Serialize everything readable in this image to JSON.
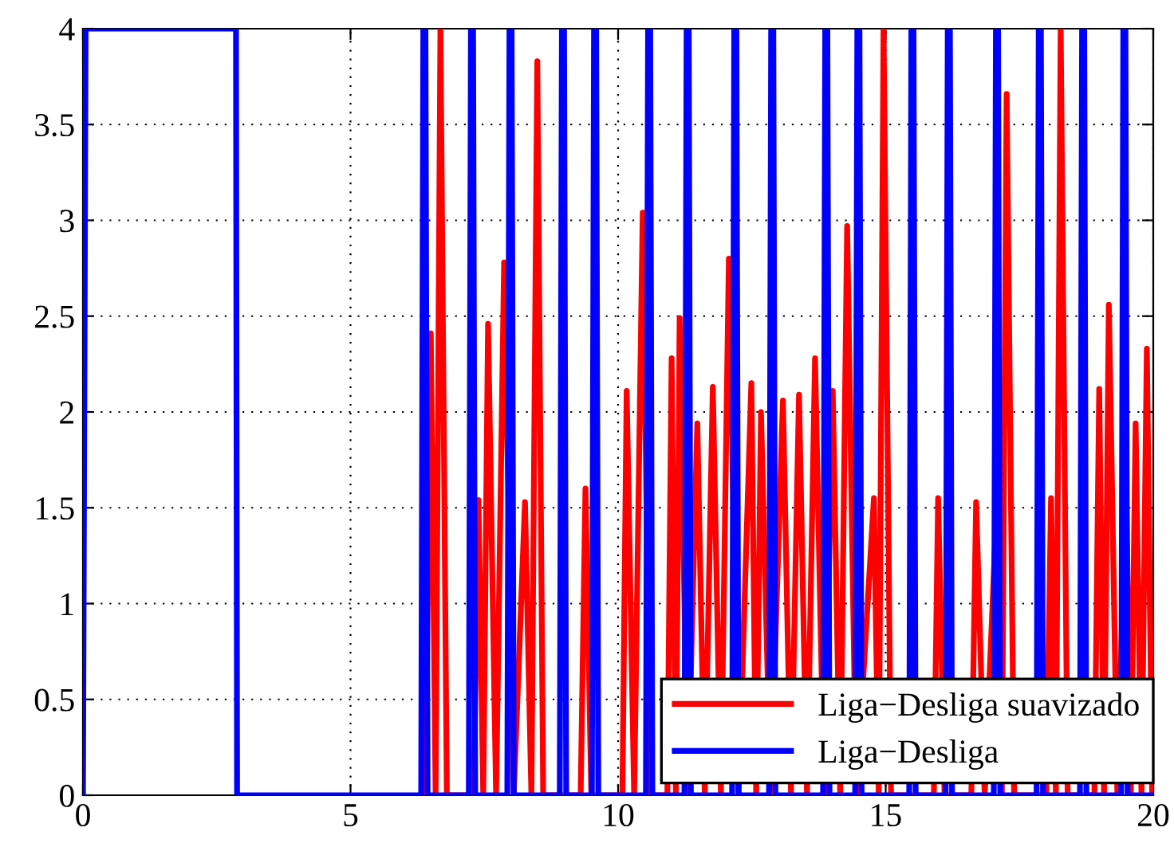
{
  "chart_data": {
    "type": "line",
    "xlim": [
      0,
      20
    ],
    "ylim": [
      0,
      4
    ],
    "xticks": [
      0,
      5,
      10,
      15,
      20
    ],
    "yticks": [
      0,
      0.5,
      1,
      1.5,
      2,
      2.5,
      3,
      3.5,
      4
    ],
    "grid": true,
    "legend": "bottom right",
    "line_style": "solid",
    "marker": "none",
    "series": [
      {
        "name": "Liga−Desliga suavizado",
        "color": "#ff0000",
        "x": [
          6.4,
          6.5,
          6.59,
          6.68,
          6.8,
          7.3,
          7.39,
          7.48,
          7.57,
          7.72,
          7.87,
          8.05,
          8.26,
          8.38,
          8.49,
          8.6,
          9.3,
          9.39,
          9.5,
          10.08,
          10.16,
          10.3,
          10.46,
          10.6,
          10.92,
          11.0,
          11.08,
          11.15,
          11.3,
          11.48,
          11.62,
          11.77,
          11.92,
          12.07,
          12.25,
          12.49,
          12.58,
          12.67,
          12.85,
          13.08,
          13.23,
          13.38,
          13.53,
          13.68,
          13.85,
          14.01,
          14.15,
          14.28,
          14.45,
          14.78,
          14.87,
          14.96,
          15.1,
          15.9,
          15.98,
          16.1,
          16.6,
          16.69,
          16.85,
          17.08,
          17.17,
          17.26,
          17.4,
          18.0,
          18.09,
          18.18,
          18.27,
          18.4,
          18.9,
          18.99,
          19.08,
          19.17,
          19.33,
          19.49,
          19.58,
          19.67,
          19.78,
          19.88,
          19.98
        ],
        "values": [
          0,
          2.41,
          0,
          4,
          0,
          0,
          1.54,
          0,
          2.46,
          0,
          2.78,
          0,
          1.53,
          0,
          3.83,
          0,
          0,
          1.6,
          0,
          0,
          2.11,
          0,
          3.04,
          0,
          0,
          2.28,
          0,
          2.49,
          0,
          1.94,
          0,
          2.13,
          0,
          2.8,
          0,
          2.15,
          0,
          2.0,
          0,
          2.06,
          0,
          2.09,
          0,
          2.28,
          0,
          2.11,
          0,
          2.97,
          0,
          1.55,
          0,
          4,
          0,
          0,
          1.55,
          0,
          0,
          1.53,
          0,
          1.56,
          0,
          3.66,
          0,
          0,
          1.55,
          0,
          4,
          0,
          0,
          2.12,
          0,
          2.56,
          0,
          1.68,
          0,
          1.94,
          0,
          2.33,
          0
        ]
      },
      {
        "name": "Liga−Desliga",
        "color": "#0000ff",
        "x": [
          0,
          0.05,
          2.86,
          2.88,
          6.32,
          6.36,
          6.4,
          6.44,
          7.21,
          7.25,
          7.29,
          7.33,
          7.93,
          7.97,
          8.01,
          8.05,
          8.91,
          8.95,
          8.99,
          9.03,
          9.51,
          9.55,
          9.59,
          9.63,
          10.52,
          10.56,
          10.6,
          10.64,
          11.24,
          11.28,
          11.32,
          11.36,
          12.13,
          12.17,
          12.21,
          12.25,
          12.82,
          12.86,
          12.9,
          12.94,
          13.83,
          13.87,
          13.91,
          13.95,
          14.43,
          14.47,
          14.51,
          14.55,
          15.44,
          15.48,
          15.52,
          15.56,
          16.12,
          16.16,
          16.2,
          16.24,
          17.02,
          17.06,
          17.1,
          17.14,
          17.82,
          17.86,
          17.9,
          17.94,
          18.63,
          18.67,
          18.71,
          18.75,
          19.4,
          19.44,
          19.48,
          19.52,
          20
        ],
        "values": [
          0,
          4,
          4,
          0,
          0,
          4,
          4,
          0,
          0,
          4,
          4,
          0,
          0,
          4,
          4,
          0,
          0,
          4,
          4,
          0,
          0,
          4,
          4,
          0,
          0,
          4,
          4,
          0,
          0,
          4,
          4,
          0,
          0,
          4,
          4,
          0,
          0,
          4,
          4,
          0,
          0,
          4,
          4,
          0,
          0,
          4,
          4,
          0,
          0,
          4,
          4,
          0,
          0,
          4,
          4,
          0,
          0,
          4,
          4,
          0,
          0,
          4,
          4,
          0,
          0,
          4,
          4,
          0,
          0,
          4,
          4,
          0,
          0
        ]
      }
    ]
  }
}
